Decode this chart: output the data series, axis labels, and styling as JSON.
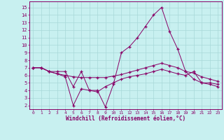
{
  "background_color": "#c8f0f0",
  "grid_color": "#a8d8d8",
  "line_color": "#880066",
  "xlabel": "Windchill (Refroidissement éolien,°C)",
  "ylim": [
    1.5,
    15.8
  ],
  "xlim": [
    -0.5,
    23.5
  ],
  "ytick_min": 2,
  "ytick_max": 15,
  "line1_x": [
    0,
    1,
    2,
    3,
    4,
    5,
    6,
    7,
    8,
    9,
    10,
    11,
    12,
    13,
    14,
    15,
    16,
    17,
    18,
    19,
    20,
    21,
    22,
    23
  ],
  "line1_y": [
    7.0,
    7.0,
    6.5,
    6.5,
    6.5,
    4.5,
    6.5,
    4.0,
    4.0,
    1.8,
    4.8,
    9.0,
    9.8,
    11.0,
    12.5,
    14.0,
    15.0,
    11.8,
    9.5,
    6.5,
    5.5,
    5.0,
    5.0,
    4.8
  ],
  "line2_x": [
    0,
    1,
    2,
    3,
    4,
    5,
    6,
    7,
    8,
    9,
    10,
    11,
    12,
    13,
    14,
    15,
    16,
    17,
    18,
    19,
    20,
    21,
    22,
    23
  ],
  "line2_y": [
    7.0,
    7.0,
    6.5,
    6.2,
    6.0,
    5.8,
    5.7,
    5.7,
    5.7,
    5.7,
    5.9,
    6.1,
    6.4,
    6.7,
    7.0,
    7.3,
    7.6,
    7.3,
    7.0,
    6.5,
    6.3,
    5.8,
    5.5,
    5.2
  ],
  "line3_x": [
    0,
    1,
    2,
    3,
    4,
    5,
    6,
    7,
    8,
    9,
    10,
    11,
    12,
    13,
    14,
    15,
    16,
    17,
    18,
    19,
    20,
    21,
    22,
    23
  ],
  "line3_y": [
    7.0,
    7.0,
    6.5,
    6.2,
    5.8,
    2.0,
    4.2,
    4.0,
    3.8,
    4.5,
    5.0,
    5.5,
    5.8,
    6.0,
    6.2,
    6.5,
    6.8,
    6.5,
    6.2,
    6.0,
    6.5,
    5.0,
    4.8,
    4.5
  ]
}
